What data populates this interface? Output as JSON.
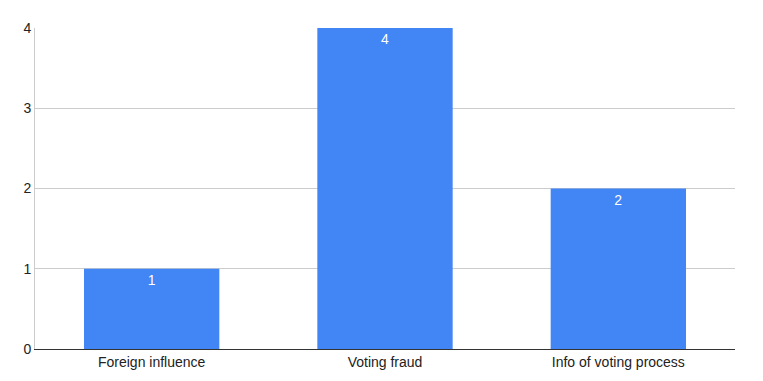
{
  "chart_data": {
    "type": "bar",
    "categories": [
      "Foreign influence",
      "Voting fraud",
      "Info of voting process"
    ],
    "values": [
      1,
      4,
      2
    ],
    "color": "#4285f4",
    "ylim": [
      0,
      4
    ],
    "yticks": [
      0,
      1,
      2,
      3,
      4
    ],
    "grid": true,
    "data_labels": true
  }
}
